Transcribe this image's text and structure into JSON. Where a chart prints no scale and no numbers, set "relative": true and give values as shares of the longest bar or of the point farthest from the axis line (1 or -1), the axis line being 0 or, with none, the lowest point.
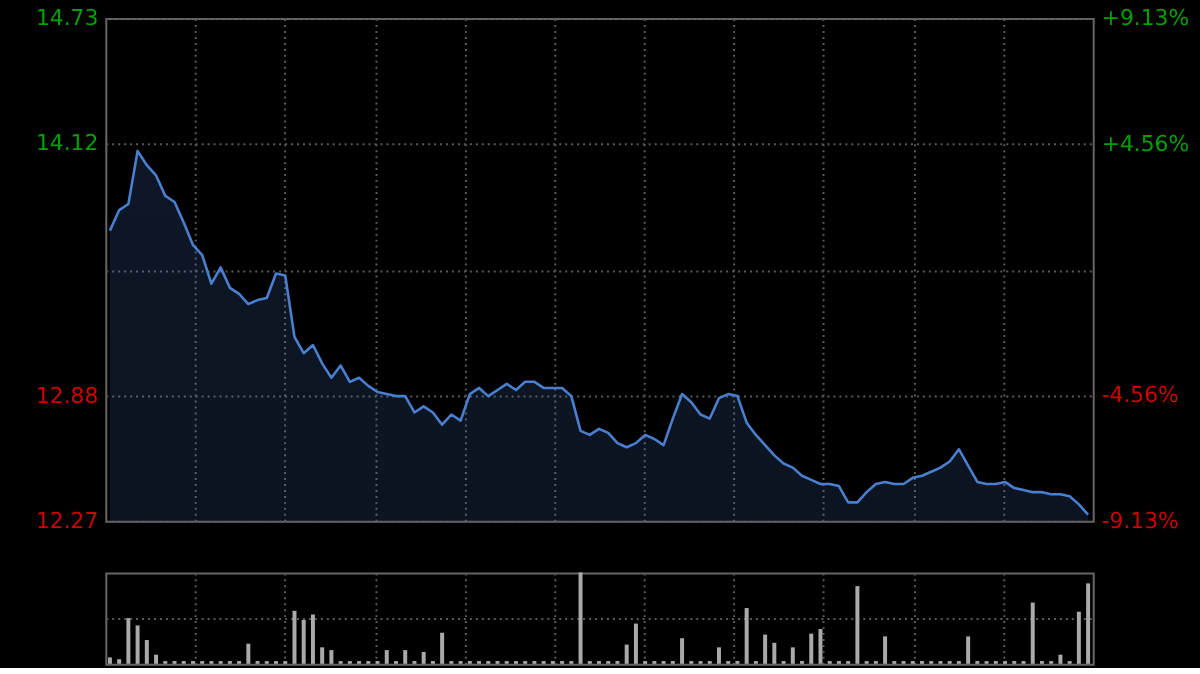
{
  "chart_data": [
    {
      "type": "area",
      "categories": [
        null,
        null,
        null,
        null,
        null,
        null,
        null,
        null,
        null,
        null,
        null,
        null,
        null,
        null,
        null,
        null,
        null,
        null,
        null,
        null,
        null,
        null,
        null,
        null,
        null,
        null,
        null,
        null,
        null,
        null,
        null,
        null,
        null,
        null,
        null,
        null,
        null,
        null,
        null,
        null,
        null,
        null,
        null,
        null,
        null,
        null,
        null,
        null,
        null,
        null,
        null,
        null,
        null,
        null,
        null,
        null,
        null,
        null,
        null,
        null,
        null,
        null,
        null,
        null,
        null,
        null,
        null,
        null,
        null,
        null,
        null,
        null,
        null,
        null,
        null,
        null,
        null,
        null,
        null,
        null,
        null,
        null,
        null,
        null,
        null,
        null,
        null,
        null,
        null,
        null,
        null,
        null,
        null,
        null,
        null,
        null,
        null,
        null,
        null,
        null,
        null,
        null,
        null,
        null,
        null,
        null,
        null
      ],
      "series": [
        {
          "color": "#4a7fd0",
          "values": [
            13.69,
            13.79,
            13.82,
            14.08,
            14.01,
            13.96,
            13.86,
            13.83,
            13.73,
            13.62,
            13.57,
            13.43,
            13.51,
            13.41,
            13.38,
            13.33,
            13.35,
            13.36,
            13.48,
            13.47,
            13.17,
            13.09,
            13.13,
            13.04,
            12.97,
            13.03,
            12.95,
            12.97,
            12.93,
            12.9,
            12.89,
            12.88,
            12.88,
            12.8,
            12.83,
            12.8,
            12.74,
            12.79,
            12.76,
            12.89,
            12.92,
            12.88,
            12.91,
            12.94,
            12.91,
            12.95,
            12.95,
            12.92,
            12.92,
            12.92,
            12.88,
            12.71,
            12.69,
            12.72,
            12.7,
            12.65,
            12.63,
            12.65,
            12.69,
            12.67,
            12.64,
            12.77,
            12.89,
            12.85,
            12.79,
            12.77,
            12.87,
            12.89,
            12.88,
            12.75,
            12.69,
            12.64,
            12.59,
            12.55,
            12.53,
            12.49,
            12.47,
            12.45,
            12.45,
            12.44,
            12.36,
            12.36,
            12.41,
            12.45,
            12.46,
            12.45,
            12.45,
            12.48,
            12.49,
            12.51,
            12.53,
            12.56,
            12.62,
            12.54,
            12.46,
            12.45,
            12.45,
            12.46,
            12.43,
            12.42,
            12.41,
            12.41,
            12.4,
            12.4,
            12.39,
            12.35,
            12.3
          ]
        }
      ],
      "ylim": [
        12.27,
        14.73
      ],
      "yticks": [
        12.27,
        12.88,
        {
          "value": 13.5,
          "label": null
        },
        14.12,
        14.73
      ],
      "y2lim": [
        -9.13,
        9.13
      ],
      "y2ticks": [
        {
          "value": -9.13,
          "label": "-9.13%"
        },
        {
          "value": -4.56,
          "label": "-4.56%"
        },
        {
          "value": 0,
          "label": null
        },
        {
          "value": 4.56,
          "label": "+4.56%"
        },
        {
          "value": 9.13,
          "label": "+9.13%"
        }
      ],
      "grid": true
    },
    {
      "type": "bar",
      "relative": true,
      "categories": [
        null,
        null,
        null,
        null,
        null,
        null,
        null,
        null,
        null,
        null,
        null,
        null,
        null,
        null,
        null,
        null,
        null,
        null,
        null,
        null,
        null,
        null,
        null,
        null,
        null,
        null,
        null,
        null,
        null,
        null,
        null,
        null,
        null,
        null,
        null,
        null,
        null,
        null,
        null,
        null,
        null,
        null,
        null,
        null,
        null,
        null,
        null,
        null,
        null,
        null,
        null,
        null,
        null,
        null,
        null,
        null,
        null,
        null,
        null,
        null,
        null,
        null,
        null,
        null,
        null,
        null,
        null,
        null,
        null,
        null,
        null,
        null,
        null,
        null,
        null,
        null,
        null,
        null,
        null,
        null,
        null,
        null,
        null,
        null,
        null,
        null,
        null,
        null,
        null,
        null,
        null,
        null,
        null,
        null,
        null,
        null,
        null,
        null,
        null,
        null,
        null,
        null,
        null,
        null,
        null,
        null,
        null
      ],
      "series": [
        {
          "color": "#aaaaaa",
          "values": [
            0.07,
            0.05,
            0.5,
            0.42,
            0.26,
            0.1,
            0.03,
            0.03,
            0.03,
            0.03,
            0.03,
            0.03,
            0.03,
            0.03,
            0.03,
            0.22,
            0.03,
            0.03,
            0.03,
            0.03,
            0.58,
            0.48,
            0.54,
            0.18,
            0.15,
            0.03,
            0.03,
            0.03,
            0.03,
            0.03,
            0.15,
            0.03,
            0.15,
            0.03,
            0.13,
            0.03,
            0.34,
            0.03,
            0.03,
            0.03,
            0.03,
            0.03,
            0.03,
            0.03,
            0.03,
            0.03,
            0.03,
            0.03,
            0.03,
            0.03,
            0.03,
            1.0,
            0.03,
            0.03,
            0.03,
            0.03,
            0.21,
            0.44,
            0.03,
            0.03,
            0.03,
            0.03,
            0.28,
            0.03,
            0.03,
            0.03,
            0.18,
            0.03,
            0.03,
            0.61,
            0.03,
            0.32,
            0.23,
            0.03,
            0.18,
            0.03,
            0.33,
            0.38,
            0.03,
            0.03,
            0.03,
            0.85,
            0.03,
            0.03,
            0.3,
            0.03,
            0.03,
            0.03,
            0.03,
            0.03,
            0.03,
            0.03,
            0.03,
            0.3,
            0.03,
            0.03,
            0.03,
            0.03,
            0.03,
            0.03,
            0.67,
            0.03,
            0.03,
            0.1,
            0.03,
            0.57,
            0.88
          ]
        }
      ],
      "grid": true
    }
  ]
}
